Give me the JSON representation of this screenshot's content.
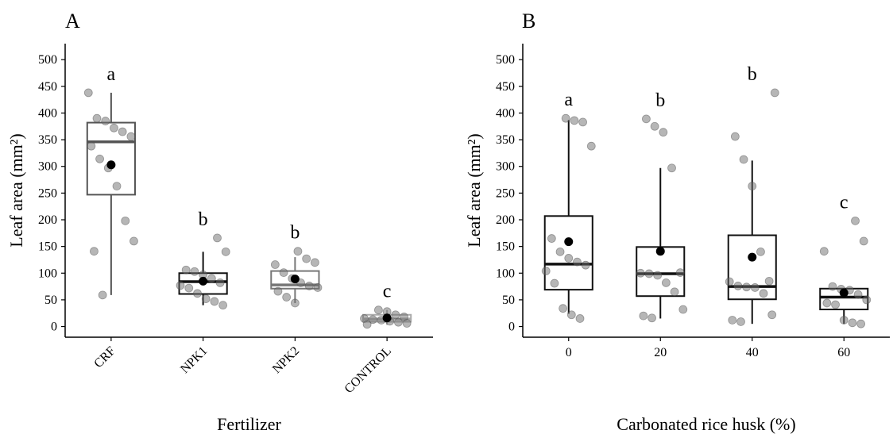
{
  "chart_data": [
    {
      "type": "boxplot",
      "panel": "A",
      "xlabel": "Fertilizer",
      "ylabel": "Leaf area (mm²)",
      "ylim": [
        -20,
        530
      ],
      "yticks": [
        0,
        50,
        100,
        150,
        200,
        250,
        300,
        350,
        400,
        450,
        500
      ],
      "categories": [
        "CRF",
        "NPK1",
        "NPK2",
        "CONTROL"
      ],
      "x_tick_rotation": -45,
      "boxes": [
        {
          "category": "CRF",
          "q1": 247,
          "median": 346,
          "q3": 382,
          "whisker_low": 59,
          "whisker_high": 438,
          "mean": 303,
          "letter": "a",
          "box_color": "#555555",
          "points": [
            438,
            390,
            385,
            372,
            365,
            356,
            338,
            314,
            297,
            263,
            198,
            160,
            141,
            59
          ]
        },
        {
          "category": "NPK1",
          "q1": 61,
          "median": 84,
          "q3": 100,
          "whisker_low": 40,
          "whisker_high": 140,
          "mean": 85,
          "letter": "b",
          "box_color": "#111111",
          "points": [
            166,
            140,
            106,
            103,
            97,
            90,
            82,
            77,
            72,
            62,
            52,
            47,
            40
          ]
        },
        {
          "category": "NPK2",
          "q1": 71,
          "median": 78,
          "q3": 104,
          "whisker_low": 44,
          "whisker_high": 130,
          "mean": 89,
          "letter": "b",
          "box_color": "#777777",
          "points": [
            141,
            127,
            120,
            116,
            101,
            90,
            82,
            76,
            73,
            66,
            55,
            44
          ]
        },
        {
          "category": "CONTROL",
          "q1": 9,
          "median": 14,
          "q3": 22,
          "whisker_low": 3,
          "whisker_high": 31,
          "mean": 16,
          "letter": "c",
          "box_color": "#aaaaaa",
          "points": [
            31,
            28,
            22,
            18,
            15,
            13,
            12,
            10,
            8,
            6,
            4
          ]
        }
      ]
    },
    {
      "type": "boxplot",
      "panel": "B",
      "xlabel": "Carbonated rice husk (%)",
      "ylabel": "Leaf area (mm²)",
      "ylim": [
        -20,
        530
      ],
      "yticks": [
        0,
        50,
        100,
        150,
        200,
        250,
        300,
        350,
        400,
        450,
        500
      ],
      "categories": [
        "0",
        "20",
        "40",
        "60"
      ],
      "x_tick_rotation": 0,
      "boxes": [
        {
          "category": "0",
          "q1": 69,
          "median": 117,
          "q3": 207,
          "whisker_low": 24,
          "whisker_high": 387,
          "mean": 159,
          "letter": "a",
          "box_color": "#111111",
          "points": [
            390,
            386,
            383,
            338,
            165,
            140,
            128,
            121,
            115,
            104,
            81,
            34,
            22,
            15
          ]
        },
        {
          "category": "20",
          "q1": 57,
          "median": 99,
          "q3": 149,
          "whisker_low": 15,
          "whisker_high": 297,
          "mean": 141,
          "letter": "b",
          "box_color": "#111111",
          "points": [
            389,
            375,
            364,
            297,
            101,
            100,
            99,
            96,
            82,
            65,
            32,
            20,
            16
          ]
        },
        {
          "category": "40",
          "q1": 51,
          "median": 75,
          "q3": 171,
          "whisker_low": 5,
          "whisker_high": 311,
          "mean": 130,
          "letter": "b",
          "box_color": "#111111",
          "points": [
            438,
            356,
            313,
            263,
            140,
            85,
            84,
            76,
            74,
            73,
            62,
            22,
            12,
            9
          ]
        },
        {
          "category": "60",
          "q1": 32,
          "median": 55,
          "q3": 71,
          "whisker_low": 5,
          "whisker_high": 71,
          "mean": 63,
          "letter": "c",
          "box_color": "#111111",
          "points": [
            198,
            160,
            141,
            75,
            70,
            68,
            60,
            50,
            44,
            41,
            12,
            7,
            5
          ]
        }
      ]
    }
  ]
}
